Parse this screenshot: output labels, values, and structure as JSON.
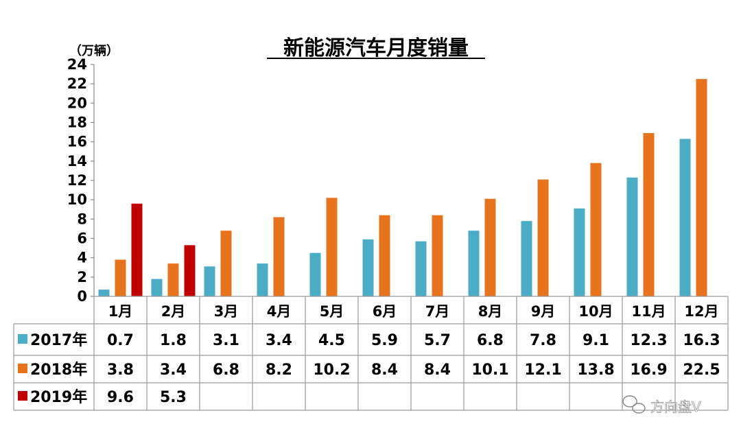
{
  "chart_data": {
    "type": "bar",
    "title": "新能源汽车月度销量",
    "ylabel": "（万辆）",
    "ylim": [
      0,
      24
    ],
    "yticks": [
      "0",
      "2",
      "4",
      "6",
      "8",
      "10",
      "12",
      "14",
      "16",
      "18",
      "20",
      "22",
      "24"
    ],
    "categories": [
      "1月",
      "2月",
      "3月",
      "4月",
      "5月",
      "6月",
      "7月",
      "8月",
      "9月",
      "10月",
      "11月",
      "12月"
    ],
    "series": [
      {
        "name": "2017年",
        "color": "#4bacc6",
        "values": [
          0.7,
          1.8,
          3.1,
          3.4,
          4.5,
          5.9,
          5.7,
          6.8,
          7.8,
          9.1,
          12.3,
          16.3
        ]
      },
      {
        "name": "2018年",
        "color": "#e8731d",
        "values": [
          3.8,
          3.4,
          6.8,
          8.2,
          10.2,
          8.4,
          8.4,
          10.1,
          12.1,
          13.8,
          16.9,
          22.5
        ]
      },
      {
        "name": "2019年",
        "color": "#c00000",
        "values": [
          9.6,
          5.3,
          null,
          null,
          null,
          null,
          null,
          null,
          null,
          null,
          null,
          null
        ]
      }
    ],
    "table_labels": [
      [
        "0.7",
        "1.8",
        "3.1",
        "3.4",
        "4.5",
        "5.9",
        "5.7",
        "6.8",
        "7.8",
        "9.1",
        "12.3",
        "16.3"
      ],
      [
        "3.8",
        "3.4",
        "6.8",
        "8.2",
        "10.2",
        "8.4",
        "8.4",
        "10.1",
        "12.1",
        "13.8",
        "16.9",
        "22.5"
      ],
      [
        "9.6",
        "5.3",
        "",
        "",
        "",
        "",
        "",
        "",
        "",
        "",
        "",
        ""
      ]
    ],
    "legend": "data-table-left",
    "grid": false
  },
  "watermark": {
    "text": "方向盘V",
    "icon": "wechat-icon"
  }
}
